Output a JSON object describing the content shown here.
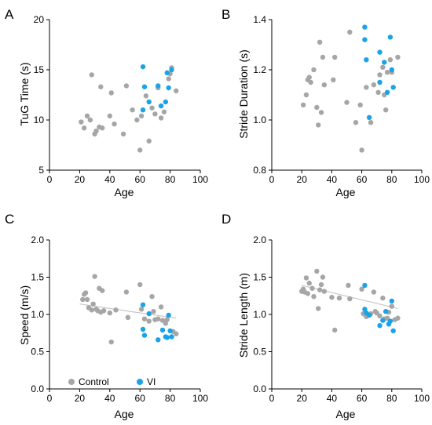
{
  "colors": {
    "control": "#a6a6a6",
    "vi": "#1aa3e8",
    "fit": "#c8c8c8",
    "axis": "#000000"
  },
  "chart_data": [
    {
      "panel": "A",
      "type": "scatter",
      "xlabel": "Age",
      "ylabel": "TuG Time (s)",
      "xlim": [
        0,
        100
      ],
      "ylim": [
        5,
        20
      ],
      "xticks": [
        "0",
        "20",
        "40",
        "60",
        "80",
        "100"
      ],
      "yticks": [
        "5",
        "10",
        "15",
        "20"
      ],
      "series": [
        {
          "key": "control",
          "points": [
            [
              21,
              9.8
            ],
            [
              23,
              9.2
            ],
            [
              25,
              10.4
            ],
            [
              27,
              10.0
            ],
            [
              28,
              14.5
            ],
            [
              30,
              8.6
            ],
            [
              31,
              8.9
            ],
            [
              33,
              9.3
            ],
            [
              34,
              13.3
            ],
            [
              35,
              9.2
            ],
            [
              40,
              10.4
            ],
            [
              41,
              12.7
            ],
            [
              43,
              9.6
            ],
            [
              49,
              8.6
            ],
            [
              51,
              13.4
            ],
            [
              55,
              11.0
            ],
            [
              58,
              10.0
            ],
            [
              60,
              7.0
            ],
            [
              61,
              10.4
            ],
            [
              64,
              12.4
            ],
            [
              66,
              7.9
            ],
            [
              68,
              11.2
            ],
            [
              70,
              10.6
            ],
            [
              72,
              13.2
            ],
            [
              74,
              10.2
            ],
            [
              76,
              10.8
            ],
            [
              79,
              14.1
            ],
            [
              80,
              14.6
            ],
            [
              81,
              15.2
            ],
            [
              84,
              12.9
            ]
          ]
        },
        {
          "key": "vi",
          "points": [
            [
              62,
              15.3
            ],
            [
              62,
              11.0
            ],
            [
              63,
              13.3
            ],
            [
              66,
              11.8
            ],
            [
              72,
              13.4
            ],
            [
              74,
              11.4
            ],
            [
              77,
              11.8
            ],
            [
              78,
              14.7
            ],
            [
              79,
              13.2
            ],
            [
              81,
              15.0
            ]
          ]
        }
      ],
      "fit": null
    },
    {
      "panel": "B",
      "type": "scatter",
      "xlabel": "Age",
      "ylabel": "Stride Duration (s)",
      "xlim": [
        0,
        100
      ],
      "ylim": [
        0.8,
        1.4
      ],
      "xticks": [
        "0",
        "20",
        "40",
        "60",
        "80",
        "100"
      ],
      "yticks": [
        "0.8",
        "1.0",
        "1.2",
        "1.4"
      ],
      "series": [
        {
          "key": "control",
          "points": [
            [
              21,
              1.06
            ],
            [
              23,
              1.1
            ],
            [
              24,
              1.16
            ],
            [
              25,
              1.17
            ],
            [
              26,
              1.15
            ],
            [
              28,
              1.2
            ],
            [
              30,
              1.05
            ],
            [
              31,
              0.98
            ],
            [
              32,
              1.31
            ],
            [
              33,
              1.03
            ],
            [
              34,
              1.25
            ],
            [
              35,
              1.14
            ],
            [
              41,
              1.16
            ],
            [
              42,
              1.25
            ],
            [
              50,
              1.07
            ],
            [
              52,
              1.35
            ],
            [
              56,
              0.99
            ],
            [
              59,
              1.06
            ],
            [
              60,
              0.88
            ],
            [
              63,
              1.13
            ],
            [
              66,
              0.99
            ],
            [
              68,
              1.14
            ],
            [
              71,
              1.11
            ],
            [
              72,
              1.18
            ],
            [
              74,
              1.21
            ],
            [
              75,
              1.1
            ],
            [
              76,
              1.04
            ],
            [
              77,
              1.19
            ],
            [
              79,
              1.24
            ],
            [
              80,
              1.19
            ],
            [
              84,
              1.25
            ]
          ]
        },
        {
          "key": "vi",
          "points": [
            [
              62,
              1.37
            ],
            [
              62,
              1.32
            ],
            [
              63,
              1.24
            ],
            [
              65,
              1.01
            ],
            [
              72,
              1.27
            ],
            [
              72,
              1.15
            ],
            [
              75,
              1.23
            ],
            [
              77,
              1.11
            ],
            [
              79,
              1.33
            ],
            [
              80,
              1.2
            ],
            [
              81,
              1.13
            ]
          ]
        }
      ],
      "fit": null
    },
    {
      "panel": "C",
      "type": "scatter",
      "xlabel": "Age",
      "ylabel": "Speed (m/s)",
      "xlim": [
        0,
        100
      ],
      "ylim": [
        0.0,
        2.0
      ],
      "xticks": [
        "0",
        "20",
        "40",
        "60",
        "80",
        "100"
      ],
      "yticks": [
        "0.0",
        "0.5",
        "1.0",
        "1.5",
        "2.0"
      ],
      "legend": [
        {
          "key": "control",
          "label": "Control"
        },
        {
          "key": "vi",
          "label": "VI"
        }
      ],
      "legend_position": "bottom-left",
      "series": [
        {
          "key": "control",
          "points": [
            [
              22,
              1.2
            ],
            [
              23,
              1.27
            ],
            [
              24,
              1.29
            ],
            [
              25,
              1.2
            ],
            [
              26,
              1.09
            ],
            [
              28,
              1.06
            ],
            [
              29,
              1.14
            ],
            [
              30,
              1.51
            ],
            [
              31,
              1.07
            ],
            [
              32,
              1.05
            ],
            [
              33,
              1.35
            ],
            [
              34,
              1.03
            ],
            [
              35,
              1.32
            ],
            [
              36,
              1.05
            ],
            [
              40,
              1.02
            ],
            [
              41,
              0.63
            ],
            [
              44,
              1.06
            ],
            [
              51,
              1.3
            ],
            [
              52,
              0.96
            ],
            [
              60,
              1.4
            ],
            [
              61,
              1.07
            ],
            [
              63,
              0.94
            ],
            [
              66,
              0.91
            ],
            [
              68,
              1.24
            ],
            [
              69,
              1.04
            ],
            [
              70,
              0.93
            ],
            [
              72,
              0.94
            ],
            [
              74,
              1.1
            ],
            [
              75,
              0.92
            ],
            [
              77,
              0.88
            ],
            [
              78,
              0.93
            ],
            [
              82,
              0.77
            ],
            [
              84,
              0.74
            ]
          ]
        },
        {
          "key": "vi",
          "points": [
            [
              62,
              1.13
            ],
            [
              62,
              0.8
            ],
            [
              63,
              0.72
            ],
            [
              66,
              1.01
            ],
            [
              72,
              0.66
            ],
            [
              75,
              0.79
            ],
            [
              77,
              0.7
            ],
            [
              78,
              0.69
            ],
            [
              79,
              0.99
            ],
            [
              80,
              0.78
            ],
            [
              81,
              0.7
            ]
          ]
        }
      ],
      "fit": {
        "x": [
          20,
          84
        ],
        "y": [
          1.14,
          0.95
        ]
      }
    },
    {
      "panel": "D",
      "type": "scatter",
      "xlabel": "Age",
      "ylabel": "Stride Length (m)",
      "xlim": [
        0,
        100
      ],
      "ylim": [
        0.0,
        2.0
      ],
      "xticks": [
        "0",
        "20",
        "40",
        "60",
        "80",
        "100"
      ],
      "yticks": [
        "0.0",
        "0.5",
        "1.0",
        "1.5",
        "2.0"
      ],
      "series": [
        {
          "key": "control",
          "points": [
            [
              20,
              1.31
            ],
            [
              21,
              1.34
            ],
            [
              22,
              1.3
            ],
            [
              23,
              1.49
            ],
            [
              24,
              1.28
            ],
            [
              25,
              1.42
            ],
            [
              27,
              1.35
            ],
            [
              28,
              1.24
            ],
            [
              30,
              1.58
            ],
            [
              31,
              1.08
            ],
            [
              32,
              1.33
            ],
            [
              33,
              1.4
            ],
            [
              34,
              1.5
            ],
            [
              35,
              1.31
            ],
            [
              40,
              1.23
            ],
            [
              42,
              0.79
            ],
            [
              45,
              1.22
            ],
            [
              51,
              1.39
            ],
            [
              52,
              1.21
            ],
            [
              60,
              1.34
            ],
            [
              61,
              1.01
            ],
            [
              63,
              0.97
            ],
            [
              66,
              1.01
            ],
            [
              68,
              1.3
            ],
            [
              69,
              1.04
            ],
            [
              70,
              1.02
            ],
            [
              72,
              0.98
            ],
            [
              74,
              1.22
            ],
            [
              75,
              0.94
            ],
            [
              77,
              0.95
            ],
            [
              78,
              1.03
            ],
            [
              80,
              1.11
            ],
            [
              82,
              0.93
            ],
            [
              84,
              0.95
            ]
          ]
        },
        {
          "key": "vi",
          "points": [
            [
              62,
              1.39
            ],
            [
              62,
              1.07
            ],
            [
              63,
              1.02
            ],
            [
              65,
              0.99
            ],
            [
              72,
              0.85
            ],
            [
              74,
              0.92
            ],
            [
              76,
              1.04
            ],
            [
              78,
              0.87
            ],
            [
              79,
              0.91
            ],
            [
              80,
              1.18
            ],
            [
              81,
              0.78
            ]
          ]
        }
      ],
      "fit": {
        "x": [
          20,
          84
        ],
        "y": [
          1.39,
          1.08
        ]
      }
    }
  ]
}
